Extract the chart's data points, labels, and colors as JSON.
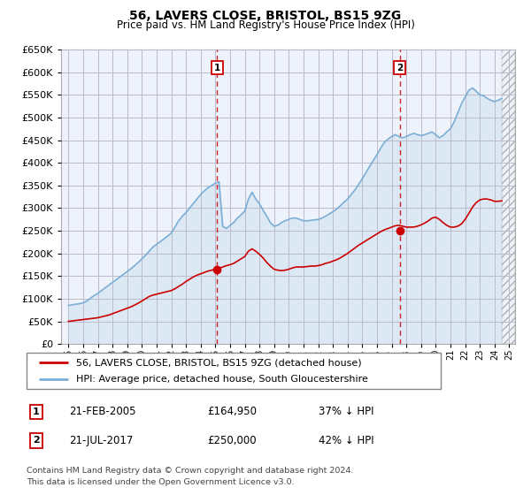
{
  "title": "56, LAVERS CLOSE, BRISTOL, BS15 9ZG",
  "subtitle": "Price paid vs. HM Land Registry's House Price Index (HPI)",
  "legend_line1": "56, LAVERS CLOSE, BRISTOL, BS15 9ZG (detached house)",
  "legend_line2": "HPI: Average price, detached house, South Gloucestershire",
  "footer_line1": "Contains HM Land Registry data © Crown copyright and database right 2024.",
  "footer_line2": "This data is licensed under the Open Government Licence v3.0.",
  "sale1_date": "21-FEB-2005",
  "sale1_price": "£164,950",
  "sale1_pct": "37% ↓ HPI",
  "sale2_date": "21-JUL-2017",
  "sale2_price": "£250,000",
  "sale2_pct": "42% ↓ HPI",
  "sale1_year": 2005.13,
  "sale1_value": 164950,
  "sale2_year": 2017.55,
  "sale2_value": 250000,
  "ylim_max": 650000,
  "xlim_start": 1994.5,
  "xlim_end": 2025.4,
  "red_color": "#cc0000",
  "blue_color": "#7aaed6",
  "blue_fill": "#dce9f5",
  "bg_color": "#eef2fb",
  "grid_color": "#bbbbcc",
  "hpi_x": [
    1995.0,
    1995.08,
    1995.17,
    1995.25,
    1995.33,
    1995.42,
    1995.5,
    1995.58,
    1995.67,
    1995.75,
    1995.83,
    1995.92,
    1996.0,
    1996.08,
    1996.17,
    1996.25,
    1996.33,
    1996.42,
    1996.5,
    1996.58,
    1996.67,
    1996.75,
    1996.83,
    1996.92,
    1997.0,
    1997.25,
    1997.5,
    1997.75,
    1998.0,
    1998.25,
    1998.5,
    1998.75,
    1999.0,
    1999.25,
    1999.5,
    1999.75,
    2000.0,
    2000.25,
    2000.5,
    2000.75,
    2001.0,
    2001.25,
    2001.5,
    2001.75,
    2002.0,
    2002.25,
    2002.5,
    2002.75,
    2003.0,
    2003.25,
    2003.5,
    2003.75,
    2004.0,
    2004.25,
    2004.5,
    2004.75,
    2005.0,
    2005.25,
    2005.5,
    2005.75,
    2006.0,
    2006.25,
    2006.5,
    2006.75,
    2007.0,
    2007.25,
    2007.5,
    2007.75,
    2008.0,
    2008.25,
    2008.5,
    2008.75,
    2009.0,
    2009.25,
    2009.5,
    2009.75,
    2010.0,
    2010.25,
    2010.5,
    2010.75,
    2011.0,
    2011.25,
    2011.5,
    2011.75,
    2012.0,
    2012.25,
    2012.5,
    2012.75,
    2013.0,
    2013.25,
    2013.5,
    2013.75,
    2014.0,
    2014.25,
    2014.5,
    2014.75,
    2015.0,
    2015.25,
    2015.5,
    2015.75,
    2016.0,
    2016.25,
    2016.5,
    2016.75,
    2017.0,
    2017.25,
    2017.5,
    2017.75,
    2018.0,
    2018.25,
    2018.5,
    2018.75,
    2019.0,
    2019.25,
    2019.5,
    2019.75,
    2020.0,
    2020.25,
    2020.5,
    2020.75,
    2021.0,
    2021.25,
    2021.5,
    2021.75,
    2022.0,
    2022.25,
    2022.5,
    2022.75,
    2023.0,
    2023.25,
    2023.5,
    2023.75,
    2024.0,
    2024.25,
    2024.5
  ],
  "hpi_y": [
    85000,
    85500,
    86000,
    86500,
    87000,
    87500,
    88000,
    88000,
    88500,
    89000,
    89500,
    90000,
    91000,
    92000,
    93500,
    95000,
    97000,
    99000,
    101000,
    103000,
    105000,
    107000,
    108500,
    110000,
    112000,
    118000,
    124000,
    130000,
    136000,
    142000,
    148000,
    154000,
    160000,
    166000,
    173000,
    180000,
    188000,
    196000,
    205000,
    214000,
    220000,
    226000,
    232000,
    238000,
    245000,
    258000,
    272000,
    282000,
    290000,
    300000,
    310000,
    320000,
    330000,
    338000,
    345000,
    350000,
    355000,
    358000,
    260000,
    255000,
    262000,
    268000,
    278000,
    285000,
    293000,
    320000,
    335000,
    320000,
    310000,
    295000,
    282000,
    268000,
    260000,
    262000,
    268000,
    272000,
    275000,
    278000,
    278000,
    275000,
    272000,
    272000,
    273000,
    274000,
    275000,
    278000,
    282000,
    287000,
    292000,
    298000,
    305000,
    313000,
    320000,
    330000,
    340000,
    352000,
    365000,
    378000,
    392000,
    405000,
    418000,
    432000,
    445000,
    452000,
    458000,
    462000,
    458000,
    455000,
    458000,
    462000,
    465000,
    462000,
    460000,
    462000,
    465000,
    468000,
    462000,
    455000,
    460000,
    468000,
    475000,
    490000,
    510000,
    530000,
    545000,
    560000,
    565000,
    558000,
    550000,
    548000,
    542000,
    538000,
    535000,
    538000,
    542000
  ],
  "red_x": [
    1995.0,
    1995.25,
    1995.5,
    1995.75,
    1996.0,
    1996.25,
    1996.5,
    1996.75,
    1997.0,
    1997.25,
    1997.5,
    1997.75,
    1998.0,
    1998.25,
    1998.5,
    1998.75,
    1999.0,
    1999.25,
    1999.5,
    1999.75,
    2000.0,
    2000.25,
    2000.5,
    2000.75,
    2001.0,
    2001.25,
    2001.5,
    2001.75,
    2002.0,
    2002.25,
    2002.5,
    2002.75,
    2003.0,
    2003.25,
    2003.5,
    2003.75,
    2004.0,
    2004.25,
    2004.5,
    2004.75,
    2005.0,
    2005.25,
    2005.5,
    2005.75,
    2006.0,
    2006.25,
    2006.5,
    2006.75,
    2007.0,
    2007.25,
    2007.5,
    2007.75,
    2008.0,
    2008.25,
    2008.5,
    2008.75,
    2009.0,
    2009.25,
    2009.5,
    2009.75,
    2010.0,
    2010.25,
    2010.5,
    2010.75,
    2011.0,
    2011.25,
    2011.5,
    2011.75,
    2012.0,
    2012.25,
    2012.5,
    2012.75,
    2013.0,
    2013.25,
    2013.5,
    2013.75,
    2014.0,
    2014.25,
    2014.5,
    2014.75,
    2015.0,
    2015.25,
    2015.5,
    2015.75,
    2016.0,
    2016.25,
    2016.5,
    2016.75,
    2017.0,
    2017.25,
    2017.5,
    2017.75,
    2018.0,
    2018.25,
    2018.5,
    2018.75,
    2019.0,
    2019.25,
    2019.5,
    2019.75,
    2020.0,
    2020.25,
    2020.5,
    2020.75,
    2021.0,
    2021.25,
    2021.5,
    2021.75,
    2022.0,
    2022.25,
    2022.5,
    2022.75,
    2023.0,
    2023.25,
    2023.5,
    2023.75,
    2024.0,
    2024.25,
    2024.5
  ],
  "red_y": [
    50000,
    51000,
    52000,
    53000,
    54000,
    55000,
    56000,
    57000,
    58000,
    60000,
    62000,
    64000,
    67000,
    70000,
    73000,
    76000,
    79000,
    82000,
    86000,
    90000,
    95000,
    100000,
    105000,
    108000,
    110000,
    112000,
    114000,
    116000,
    118000,
    122000,
    127000,
    132000,
    138000,
    143000,
    148000,
    152000,
    155000,
    158000,
    161000,
    163000,
    165000,
    167000,
    170000,
    173000,
    175000,
    178000,
    183000,
    188000,
    193000,
    205000,
    210000,
    205000,
    198000,
    190000,
    180000,
    172000,
    165000,
    163000,
    162000,
    163000,
    165000,
    168000,
    170000,
    170000,
    170000,
    171000,
    172000,
    172000,
    173000,
    175000,
    178000,
    180000,
    183000,
    186000,
    190000,
    195000,
    200000,
    206000,
    212000,
    218000,
    223000,
    228000,
    233000,
    238000,
    243000,
    248000,
    252000,
    255000,
    258000,
    261000,
    262000,
    260000,
    258000,
    258000,
    258000,
    260000,
    263000,
    267000,
    272000,
    278000,
    280000,
    275000,
    268000,
    262000,
    258000,
    258000,
    260000,
    265000,
    275000,
    288000,
    302000,
    312000,
    318000,
    320000,
    320000,
    318000,
    315000,
    315000,
    316000
  ]
}
